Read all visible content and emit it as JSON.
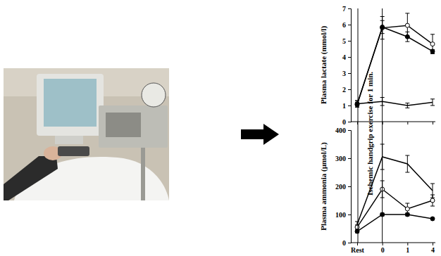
{
  "chart_data": [
    {
      "type": "line",
      "y_label": "Plasma lactate (mmol/l)",
      "categories": [
        "Rest",
        "0",
        "1",
        "4"
      ],
      "series": [
        {
          "color": "#000000",
          "marker": "circle-open",
          "line_style": "solid",
          "values": [
            1.1,
            5.8,
            5.95,
            4.8
          ],
          "errors": [
            0.2,
            0.7,
            0.75,
            0.6
          ]
        },
        {
          "color": "#000000",
          "marker": "circle",
          "line_style": "solid",
          "values": [
            1.05,
            5.85,
            5.25,
            4.35
          ],
          "errors": [
            0.15,
            0.4,
            0.3,
            0.1
          ]
        },
        {
          "color": "#000000",
          "marker": "none",
          "line_style": "solid",
          "values": [
            1.1,
            1.25,
            1.0,
            1.2
          ],
          "errors": [
            0.2,
            0.25,
            0.15,
            0.2
          ]
        }
      ],
      "ylim": [
        0,
        7
      ],
      "yticks": [
        0,
        1,
        2,
        3,
        4,
        5,
        6,
        7
      ],
      "tick_labels": "y"
    },
    {
      "type": "line",
      "y_label": "Plasma ammonia (µmol/L)",
      "annotations": [
        "Ischemic handgrip exercise for 1 min."
      ],
      "categories": [
        "Rest",
        "0",
        "1",
        "4"
      ],
      "series": [
        {
          "color": "#000000",
          "marker": "none",
          "line_style": "solid",
          "values": [
            65,
            305,
            280,
            185
          ],
          "errors": [
            10,
            45,
            30,
            25
          ]
        },
        {
          "color": "#000000",
          "marker": "circle-open",
          "line_style": "solid",
          "values": [
            55,
            190,
            120,
            150
          ],
          "errors": [
            8,
            30,
            20,
            20
          ]
        },
        {
          "color": "#000000",
          "marker": "circle",
          "line_style": "solid",
          "values": [
            40,
            100,
            100,
            85
          ],
          "errors": [
            5,
            5,
            5,
            4
          ]
        }
      ],
      "ylim": [
        0,
        400
      ],
      "yticks": [
        0,
        100,
        200,
        300,
        400
      ]
    }
  ]
}
